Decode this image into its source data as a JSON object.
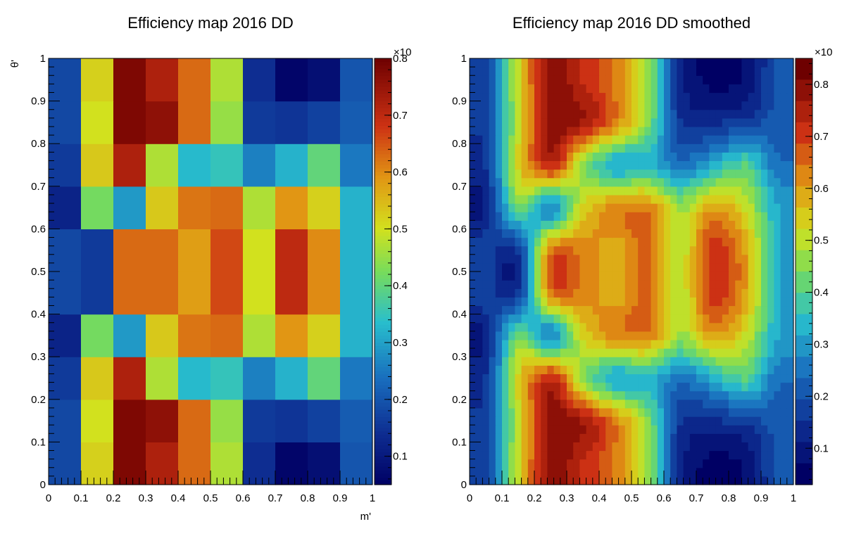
{
  "chart_data": [
    {
      "type": "heatmap",
      "title": "Efficiency map 2016 DD",
      "xlabel": "m'",
      "ylabel": "θ'",
      "xlim": [
        0,
        1
      ],
      "ylim": [
        0,
        1
      ],
      "x_ticks": [
        "0",
        "0.1",
        "0.2",
        "0.3",
        "0.4",
        "0.5",
        "0.6",
        "0.7",
        "0.8",
        "0.9",
        "1"
      ],
      "y_ticks": [
        "0",
        "0.1",
        "0.2",
        "0.3",
        "0.4",
        "0.5",
        "0.6",
        "0.7",
        "0.8",
        "0.9",
        "1"
      ],
      "colorbar": {
        "range": [
          0.05,
          0.8
        ],
        "ticks": [
          "0.1",
          "0.2",
          "0.3",
          "0.4",
          "0.5",
          "0.6",
          "0.7",
          "0.8"
        ],
        "exponent_label": "×10",
        "levels": 1000
      },
      "bins_x": 10,
      "bins_y": 10,
      "values": [
        [
          0.18,
          0.52,
          0.78,
          0.72,
          0.63,
          0.47,
          0.14,
          0.06,
          0.08,
          0.2
        ],
        [
          0.18,
          0.5,
          0.78,
          0.76,
          0.63,
          0.45,
          0.16,
          0.15,
          0.17,
          0.21
        ],
        [
          0.16,
          0.53,
          0.72,
          0.47,
          0.33,
          0.35,
          0.26,
          0.32,
          0.4,
          0.25
        ],
        [
          0.12,
          0.42,
          0.29,
          0.53,
          0.62,
          0.63,
          0.47,
          0.59,
          0.52,
          0.32
        ],
        [
          0.18,
          0.16,
          0.63,
          0.63,
          0.58,
          0.66,
          0.5,
          0.7,
          0.6,
          0.32
        ],
        [
          0.18,
          0.16,
          0.63,
          0.63,
          0.58,
          0.66,
          0.5,
          0.7,
          0.6,
          0.32
        ],
        [
          0.12,
          0.42,
          0.29,
          0.53,
          0.62,
          0.63,
          0.47,
          0.59,
          0.52,
          0.32
        ],
        [
          0.16,
          0.53,
          0.72,
          0.47,
          0.33,
          0.35,
          0.26,
          0.32,
          0.4,
          0.25
        ],
        [
          0.18,
          0.5,
          0.78,
          0.76,
          0.63,
          0.45,
          0.16,
          0.15,
          0.17,
          0.21
        ],
        [
          0.18,
          0.52,
          0.78,
          0.72,
          0.63,
          0.47,
          0.14,
          0.06,
          0.08,
          0.2
        ]
      ]
    },
    {
      "type": "heatmap",
      "title": "Efficiency map 2016 DD smoothed",
      "xlabel": "",
      "ylabel": "",
      "xlim": [
        0,
        1
      ],
      "ylim": [
        0,
        1
      ],
      "x_ticks": [
        "0",
        "0.1",
        "0.2",
        "0.3",
        "0.4",
        "0.5",
        "0.6",
        "0.7",
        "0.8",
        "0.9",
        "1"
      ],
      "y_ticks": [
        "0",
        "0.1",
        "0.2",
        "0.3",
        "0.4",
        "0.5",
        "0.6",
        "0.7",
        "0.8",
        "0.9",
        "1"
      ],
      "colorbar": {
        "range": [
          0.03,
          0.85
        ],
        "ticks": [
          "0.1",
          "0.2",
          "0.3",
          "0.4",
          "0.5",
          "0.6",
          "0.7",
          "0.8"
        ],
        "exponent_label": "×10",
        "levels": 20
      },
      "bins_x": 50,
      "bins_y": 50,
      "smoothed_from": 0
    }
  ]
}
